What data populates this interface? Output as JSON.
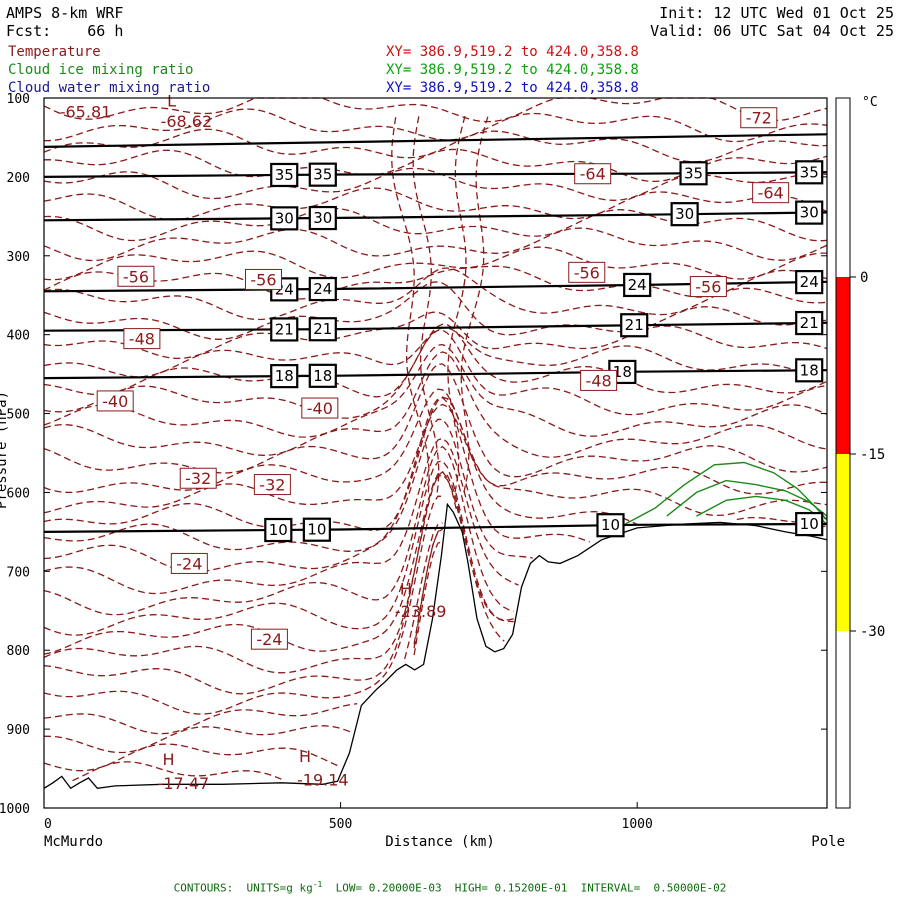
{
  "header": {
    "title": "AMPS 8-km WRF",
    "fcst_label": "Fcst:",
    "fcst_value": "66 h",
    "init": "Init: 12 UTC Wed 01 Oct 25",
    "valid": "Valid: 06 UTC Sat 04 Oct 25"
  },
  "legend": [
    {
      "name": "Temperature",
      "xy": "XY= 386.9,519.2 to 424.0,358.8",
      "color": "#8b1a1a"
    },
    {
      "name": "Cloud ice mixing ratio",
      "xy": "XY= 386.9,519.2 to 424.0,358.8",
      "color": "#1a8a1a"
    },
    {
      "name": "Cloud water mixing ratio",
      "xy": "XY= 386.9,519.2 to 424.0,358.8",
      "color": "#1a1a8a"
    }
  ],
  "footer": "CONTOURS:  UNITS=g kg",
  "footer_sup": "-1",
  "footer_rest": "  LOW= 0.20000E-03  HIGH= 0.15200E-01  INTERVAL=  0.50000E-02",
  "chart_data": {
    "type": "contour",
    "xlabel": "Distance (km)",
    "ylabel": "Pressure (hPa)",
    "xlim": [
      0,
      1320
    ],
    "ylim": [
      1000,
      100
    ],
    "xticks": [
      0,
      500,
      1000
    ],
    "yticks": [
      100,
      200,
      300,
      400,
      500,
      600,
      700,
      800,
      900,
      1000
    ],
    "x_end_labels": {
      "left": "McMurdo",
      "right": "Pole"
    },
    "colorbar": {
      "unit": "°C",
      "labels": [
        "0",
        "-15",
        "-30"
      ],
      "bands": [
        {
          "from": 0,
          "to": -15,
          "color": "#ff0000"
        },
        {
          "from": -15,
          "to": -30,
          "color": "#ffff00"
        }
      ]
    },
    "black_contours": [
      {
        "label": "35",
        "points": [
          [
            0,
            200
          ],
          [
            500,
            197
          ],
          [
            1000,
            196
          ],
          [
            1320,
            194
          ]
        ],
        "label_x": [
          405,
          470,
          1095,
          1290
        ]
      },
      {
        "label": "30",
        "points": [
          [
            0,
            255
          ],
          [
            500,
            252
          ],
          [
            1000,
            248
          ],
          [
            1320,
            245
          ]
        ],
        "label_x": [
          405,
          470,
          1080,
          1290
        ]
      },
      {
        "label": "24",
        "points": [
          [
            0,
            345
          ],
          [
            500,
            342
          ],
          [
            1000,
            337
          ],
          [
            1320,
            333
          ]
        ],
        "label_x": [
          405,
          470,
          1000,
          1290
        ]
      },
      {
        "label": "21",
        "points": [
          [
            0,
            395
          ],
          [
            500,
            393
          ],
          [
            1000,
            388
          ],
          [
            1320,
            385
          ]
        ],
        "label_x": [
          405,
          470,
          995,
          1290
        ]
      },
      {
        "label": "18",
        "points": [
          [
            0,
            455
          ],
          [
            500,
            452
          ],
          [
            1000,
            447
          ],
          [
            1320,
            445
          ]
        ],
        "label_x": [
          405,
          470,
          975,
          1290
        ]
      },
      {
        "label": "10",
        "points": [
          [
            0,
            650
          ],
          [
            500,
            647
          ],
          [
            1000,
            641
          ],
          [
            1320,
            640
          ]
        ],
        "label_x": [
          395,
          460,
          955,
          1290
        ]
      }
    ],
    "top_contour_pressure": 162,
    "temperature_labels": [
      {
        "text": "-72",
        "x": 1205,
        "p": 125,
        "boxed": true
      },
      {
        "text": "-64",
        "x": 925,
        "p": 196,
        "boxed": true
      },
      {
        "text": "-64",
        "x": 1225,
        "p": 220,
        "boxed": true
      },
      {
        "text": "-56",
        "x": 155,
        "p": 326,
        "boxed": true
      },
      {
        "text": "-56",
        "x": 370,
        "p": 330,
        "boxed": true
      },
      {
        "text": "-56",
        "x": 915,
        "p": 321,
        "boxed": true
      },
      {
        "text": "-56",
        "x": 1120,
        "p": 339,
        "boxed": true
      },
      {
        "text": "-48",
        "x": 165,
        "p": 405,
        "boxed": true
      },
      {
        "text": "-48",
        "x": 935,
        "p": 458,
        "boxed": true
      },
      {
        "text": "-40",
        "x": 120,
        "p": 484,
        "boxed": true
      },
      {
        "text": "-40",
        "x": 465,
        "p": 493,
        "boxed": true
      },
      {
        "text": "-32",
        "x": 260,
        "p": 582,
        "boxed": true
      },
      {
        "text": "-32",
        "x": 385,
        "p": 590,
        "boxed": true
      },
      {
        "text": "-24",
        "x": 245,
        "p": 690,
        "boxed": true
      },
      {
        "text": "-24",
        "x": 380,
        "p": 786,
        "boxed": true
      }
    ],
    "extrema_labels": [
      {
        "text": "-65.81",
        "x": 70,
        "p": 117
      },
      {
        "text": "-68.62",
        "x": 240,
        "p": 129
      },
      {
        "text": "-23.89",
        "x": 635,
        "p": 750
      },
      {
        "text": "-17.47",
        "x": 235,
        "p": 968
      },
      {
        "text": "-19.14",
        "x": 470,
        "p": 964
      }
    ],
    "H_markers": [
      {
        "x": 610,
        "p": 722
      },
      {
        "x": 210,
        "p": 938
      },
      {
        "x": 440,
        "p": 934
      }
    ],
    "L_markers": [
      {
        "x": 215,
        "p": 103
      }
    ],
    "terrain": [
      [
        0,
        975
      ],
      [
        15,
        968
      ],
      [
        30,
        960
      ],
      [
        45,
        975
      ],
      [
        60,
        968
      ],
      [
        75,
        962
      ],
      [
        90,
        975
      ],
      [
        120,
        972
      ],
      [
        200,
        970
      ],
      [
        300,
        970
      ],
      [
        400,
        968
      ],
      [
        470,
        970
      ],
      [
        495,
        966
      ],
      [
        515,
        930
      ],
      [
        535,
        870
      ],
      [
        560,
        850
      ],
      [
        575,
        840
      ],
      [
        595,
        825
      ],
      [
        610,
        818
      ],
      [
        625,
        825
      ],
      [
        640,
        818
      ],
      [
        655,
        760
      ],
      [
        670,
        680
      ],
      [
        680,
        615
      ],
      [
        690,
        625
      ],
      [
        705,
        650
      ],
      [
        715,
        690
      ],
      [
        730,
        760
      ],
      [
        745,
        795
      ],
      [
        760,
        802
      ],
      [
        775,
        798
      ],
      [
        790,
        780
      ],
      [
        805,
        720
      ],
      [
        820,
        690
      ],
      [
        835,
        680
      ],
      [
        850,
        688
      ],
      [
        870,
        690
      ],
      [
        900,
        680
      ],
      [
        940,
        660
      ],
      [
        1000,
        645
      ],
      [
        1080,
        640
      ],
      [
        1140,
        638
      ],
      [
        1200,
        642
      ],
      [
        1250,
        650
      ],
      [
        1290,
        655
      ],
      [
        1320,
        660
      ]
    ],
    "cloud_ice_contours": [
      [
        [
          980,
          640
        ],
        [
          1030,
          620
        ],
        [
          1080,
          590
        ],
        [
          1130,
          565
        ],
        [
          1180,
          562
        ],
        [
          1230,
          575
        ],
        [
          1270,
          595
        ],
        [
          1300,
          618
        ],
        [
          1320,
          635
        ]
      ],
      [
        [
          1050,
          630
        ],
        [
          1100,
          600
        ],
        [
          1150,
          585
        ],
        [
          1200,
          590
        ],
        [
          1250,
          598
        ],
        [
          1290,
          612
        ],
        [
          1320,
          630
        ]
      ],
      [
        [
          1100,
          630
        ],
        [
          1150,
          610
        ],
        [
          1200,
          605
        ],
        [
          1250,
          610
        ],
        [
          1290,
          622
        ],
        [
          1320,
          640
        ]
      ]
    ]
  }
}
